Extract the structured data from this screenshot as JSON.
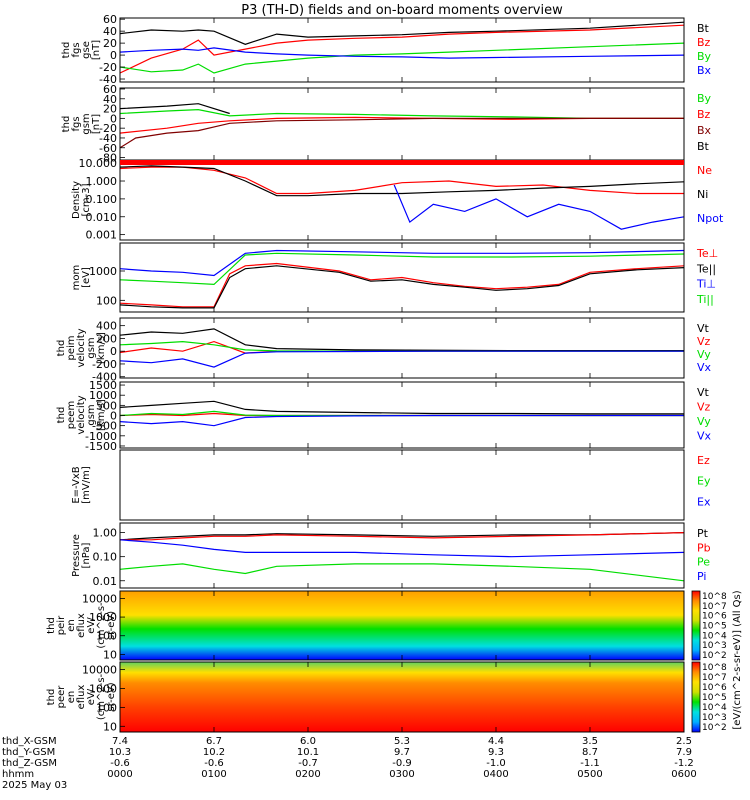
{
  "title": "P3 (TH-D) fields and on-board moments overview",
  "colors": {
    "black": "#000000",
    "red": "#ff0000",
    "green": "#00dd00",
    "blue": "#0000ff",
    "darkred": "#800000"
  },
  "chart_data": [
    {
      "type": "line",
      "ylabel": [
        "thd",
        "fgs",
        "gse",
        "[nT]"
      ],
      "yticks": [
        "60",
        "40",
        "20",
        "0",
        "-20",
        "-40"
      ],
      "ylim": [
        -45,
        62
      ],
      "series": [
        {
          "name": "Bt",
          "color": "#000000",
          "x": [
            0,
            20,
            40,
            50,
            60,
            80,
            100,
            120,
            150,
            180,
            210,
            240,
            300,
            360
          ],
          "y": [
            36,
            42,
            40,
            42,
            40,
            18,
            35,
            30,
            32,
            34,
            38,
            40,
            45,
            55
          ]
        },
        {
          "name": "Bz",
          "color": "#ff0000",
          "x": [
            0,
            20,
            40,
            50,
            60,
            80,
            100,
            120,
            150,
            180,
            210,
            240,
            300,
            360
          ],
          "y": [
            -30,
            -5,
            10,
            25,
            0,
            10,
            20,
            25,
            28,
            30,
            35,
            38,
            42,
            50
          ]
        },
        {
          "name": "By",
          "color": "#00dd00",
          "x": [
            0,
            20,
            40,
            50,
            60,
            80,
            100,
            120,
            150,
            180,
            210,
            240,
            300,
            360
          ],
          "y": [
            -20,
            -28,
            -25,
            -15,
            -30,
            -15,
            -10,
            -5,
            0,
            2,
            5,
            8,
            14,
            20
          ]
        },
        {
          "name": "Bx",
          "color": "#0000ff",
          "x": [
            0,
            20,
            40,
            50,
            60,
            80,
            100,
            120,
            150,
            180,
            210,
            240,
            300,
            360
          ],
          "y": [
            5,
            8,
            10,
            8,
            12,
            5,
            2,
            0,
            -2,
            -3,
            -5,
            -4,
            -2,
            0
          ]
        }
      ]
    },
    {
      "type": "line",
      "ylabel": [
        "thd",
        "fgs",
        "gsm",
        "[nT]"
      ],
      "yticks": [
        "60",
        "40",
        "20",
        "0",
        "-20",
        "-40",
        "-60",
        "-80"
      ],
      "ylim": [
        -85,
        62
      ],
      "series": [
        {
          "name": "By",
          "color": "#00dd00",
          "x": [
            0,
            30,
            50,
            70,
            100,
            150,
            200,
            250,
            300,
            360
          ],
          "y": [
            10,
            15,
            18,
            5,
            10,
            8,
            5,
            3,
            0,
            0
          ]
        },
        {
          "name": "Bz",
          "color": "#ff0000",
          "x": [
            0,
            30,
            50,
            70,
            100,
            150,
            200,
            250,
            300,
            360
          ],
          "y": [
            -30,
            -20,
            -10,
            -5,
            0,
            2,
            0,
            -2,
            0,
            0
          ]
        },
        {
          "name": "Bx",
          "color": "#800000",
          "x": [
            0,
            10,
            30,
            50,
            70,
            100,
            150,
            200,
            250,
            300,
            360
          ],
          "y": [
            -60,
            -40,
            -30,
            -25,
            -10,
            -5,
            -3,
            0,
            0,
            0,
            0
          ]
        },
        {
          "name": "Bt",
          "color": "#000000",
          "x": [
            0,
            30,
            50,
            70
          ],
          "y": [
            20,
            25,
            30,
            10
          ]
        }
      ]
    },
    {
      "type": "line",
      "ylabel": [
        "Density",
        "[cm-3]"
      ],
      "yticks": [
        "10.000",
        "1.000",
        "0.100",
        "0.010",
        "0.001"
      ],
      "scale": "log",
      "ylim": [
        0.0005,
        15
      ],
      "series": [
        {
          "name": "Ne",
          "color": "#ff0000",
          "x": [
            0,
            20,
            40,
            60,
            80,
            100,
            120,
            150,
            180,
            210,
            240,
            270,
            300,
            330,
            360
          ],
          "y": [
            5,
            6,
            6,
            4,
            1.5,
            0.2,
            0.2,
            0.3,
            0.8,
            1.0,
            0.5,
            0.6,
            0.3,
            0.2,
            0.2
          ]
        },
        {
          "name": "Ni",
          "color": "#000000",
          "x": [
            0,
            20,
            40,
            60,
            80,
            100,
            120,
            150,
            180,
            210,
            240,
            270,
            300,
            330,
            360
          ],
          "y": [
            6,
            7,
            6,
            5,
            1.0,
            0.15,
            0.15,
            0.2,
            0.2,
            0.25,
            0.3,
            0.4,
            0.5,
            0.7,
            0.9
          ]
        },
        {
          "name": "Npot",
          "color": "#0000ff",
          "x": [
            0,
            100,
            150,
            175,
            185,
            200,
            220,
            240,
            260,
            280,
            300,
            320,
            340,
            360
          ],
          "y": [
            null,
            null,
            null,
            0.6,
            0.005,
            0.05,
            0.02,
            0.1,
            0.01,
            0.05,
            0.02,
            0.002,
            0.005,
            0.01
          ]
        }
      ]
    },
    {
      "type": "line",
      "ylabel": [
        "mom",
        "[eV]"
      ],
      "yticks": [
        "1000",
        "100"
      ],
      "scale": "log",
      "ylim": [
        40,
        9000
      ],
      "series": [
        {
          "name": "Te⊥",
          "color": "#ff0000",
          "x": [
            0,
            20,
            40,
            60,
            70,
            80,
            100,
            140,
            160,
            180,
            200,
            220,
            240,
            260,
            280,
            300,
            330,
            360
          ],
          "y": [
            80,
            70,
            60,
            60,
            800,
            1500,
            1800,
            1000,
            500,
            600,
            400,
            300,
            250,
            280,
            350,
            900,
            1200,
            1500
          ]
        },
        {
          "name": "Te||",
          "color": "#000000",
          "x": [
            0,
            20,
            40,
            60,
            70,
            80,
            100,
            140,
            160,
            180,
            200,
            220,
            240,
            260,
            280,
            300,
            330,
            360
          ],
          "y": [
            70,
            60,
            55,
            55,
            600,
            1200,
            1500,
            900,
            450,
            500,
            350,
            280,
            220,
            250,
            320,
            800,
            1100,
            1300
          ]
        },
        {
          "name": "Ti⊥",
          "color": "#0000ff",
          "x": [
            0,
            20,
            40,
            60,
            80,
            100,
            150,
            200,
            250,
            300,
            360
          ],
          "y": [
            1200,
            1000,
            900,
            700,
            4000,
            5000,
            4500,
            4000,
            4000,
            4200,
            5000
          ]
        },
        {
          "name": "Ti||",
          "color": "#00dd00",
          "x": [
            0,
            20,
            40,
            60,
            80,
            100,
            150,
            200,
            250,
            300,
            360
          ],
          "y": [
            500,
            450,
            400,
            350,
            3500,
            4000,
            3500,
            3000,
            3000,
            3200,
            3800
          ]
        }
      ]
    },
    {
      "type": "line",
      "ylabel": [
        "thd",
        "peim",
        "velocity",
        "gsm",
        "[km/s]"
      ],
      "yticks": [
        "400",
        "200",
        "0",
        "-200",
        "-400"
      ],
      "ylim": [
        -420,
        520
      ],
      "series": [
        {
          "name": "Vt",
          "color": "#000000",
          "x": [
            0,
            20,
            40,
            60,
            80,
            100,
            150,
            200,
            250,
            300,
            360
          ],
          "y": [
            250,
            300,
            280,
            350,
            100,
            40,
            20,
            15,
            10,
            10,
            10
          ]
        },
        {
          "name": "Vz",
          "color": "#ff0000",
          "x": [
            0,
            20,
            40,
            60,
            80,
            100,
            150,
            200,
            250,
            300,
            360
          ],
          "y": [
            -20,
            50,
            0,
            150,
            -30,
            0,
            0,
            0,
            0,
            0,
            0
          ]
        },
        {
          "name": "Vy",
          "color": "#00dd00",
          "x": [
            0,
            20,
            40,
            60,
            80,
            100,
            150,
            200,
            250,
            300,
            360
          ],
          "y": [
            100,
            120,
            150,
            100,
            20,
            5,
            0,
            0,
            0,
            0,
            0
          ]
        },
        {
          "name": "Vx",
          "color": "#0000ff",
          "x": [
            0,
            20,
            40,
            60,
            80,
            100,
            150,
            200,
            250,
            300,
            360
          ],
          "y": [
            -150,
            -180,
            -120,
            -250,
            -30,
            -10,
            -5,
            0,
            0,
            0,
            0
          ]
        }
      ]
    },
    {
      "type": "line",
      "ylabel": [
        "thd",
        "peem",
        "velocity",
        "gsm",
        "[km/s]"
      ],
      "yticks": [
        "1500",
        "1000",
        "500",
        "0",
        "-500",
        "-1000",
        "-1500"
      ],
      "ylim": [
        -1600,
        1650
      ],
      "series": [
        {
          "name": "Vt",
          "color": "#000000",
          "x": [
            0,
            20,
            40,
            60,
            80,
            100,
            150,
            200,
            250,
            300,
            360
          ],
          "y": [
            400,
            500,
            600,
            700,
            300,
            200,
            150,
            100,
            100,
            80,
            80
          ]
        },
        {
          "name": "Vz",
          "color": "#ff0000",
          "x": [
            0,
            20,
            40,
            60,
            80,
            100,
            150,
            200,
            250,
            300,
            360
          ],
          "y": [
            0,
            50,
            0,
            100,
            0,
            0,
            0,
            0,
            0,
            0,
            0
          ]
        },
        {
          "name": "Vy",
          "color": "#00dd00",
          "x": [
            0,
            20,
            40,
            60,
            80,
            100,
            150,
            200,
            250,
            300,
            360
          ],
          "y": [
            0,
            100,
            50,
            200,
            20,
            0,
            0,
            0,
            0,
            0,
            0
          ]
        },
        {
          "name": "Vx",
          "color": "#0000ff",
          "x": [
            0,
            20,
            40,
            60,
            80,
            100,
            150,
            200,
            250,
            300,
            360
          ],
          "y": [
            -300,
            -400,
            -300,
            -500,
            -100,
            -50,
            -20,
            0,
            0,
            0,
            0
          ]
        }
      ]
    },
    {
      "type": "line",
      "ylabel": [
        "E=-VxB",
        "[mV/m]"
      ],
      "yticks": [],
      "ylim": [
        0,
        1
      ],
      "series": [
        {
          "name": "Ez",
          "color": "#ff0000",
          "x": [],
          "y": []
        },
        {
          "name": "Ey",
          "color": "#00dd00",
          "x": [],
          "y": []
        },
        {
          "name": "Ex",
          "color": "#0000ff",
          "x": [],
          "y": []
        }
      ]
    },
    {
      "type": "line",
      "ylabel": [
        "Pressure",
        "[nPa]"
      ],
      "yticks": [
        "1.00",
        "0.10",
        "0.01"
      ],
      "scale": "log",
      "ylim": [
        0.005,
        2.5
      ],
      "series": [
        {
          "name": "Pt",
          "color": "#000000",
          "x": [
            0,
            20,
            40,
            60,
            80,
            100,
            150,
            200,
            250,
            300,
            360
          ],
          "y": [
            0.5,
            0.6,
            0.7,
            0.8,
            0.8,
            0.9,
            0.8,
            0.7,
            0.8,
            0.8,
            1.0
          ]
        },
        {
          "name": "Pb",
          "color": "#ff0000",
          "x": [
            0,
            20,
            40,
            60,
            80,
            100,
            150,
            200,
            250,
            300,
            360
          ],
          "y": [
            0.5,
            0.5,
            0.6,
            0.7,
            0.7,
            0.8,
            0.7,
            0.6,
            0.7,
            0.8,
            1.0
          ]
        },
        {
          "name": "Pe",
          "color": "#00dd00",
          "x": [
            0,
            20,
            40,
            60,
            80,
            100,
            150,
            200,
            250,
            300,
            360
          ],
          "y": [
            0.03,
            0.04,
            0.05,
            0.03,
            0.02,
            0.04,
            0.05,
            0.05,
            0.04,
            0.03,
            0.01
          ]
        },
        {
          "name": "Pi",
          "color": "#0000ff",
          "x": [
            0,
            20,
            40,
            60,
            80,
            100,
            150,
            200,
            250,
            300,
            360
          ],
          "y": [
            0.5,
            0.4,
            0.3,
            0.2,
            0.15,
            0.15,
            0.15,
            0.12,
            0.1,
            0.12,
            0.15
          ]
        }
      ]
    },
    {
      "type": "heatmap",
      "ylabel": [
        "thd",
        "peir",
        "en",
        "eflux",
        "eV/",
        "(cm^2-s-",
        "sr-eV)"
      ],
      "yticks": [
        "10000",
        "1000",
        "100",
        "10"
      ],
      "scale": "log",
      "ylim": [
        5,
        25000
      ],
      "colorbar_ticks": [
        "10^8",
        "10^7",
        "10^6",
        "10^5",
        "10^4",
        "10^3",
        "10^2"
      ],
      "colorbar_label": "[eV/(cm^2-s-sr-eV)] (All Qs)"
    },
    {
      "type": "heatmap",
      "ylabel": [
        "thd",
        "peer",
        "en",
        "eflux",
        "eV/",
        "(cm^2-s-",
        "sr-eV)"
      ],
      "yticks": [
        "10000",
        "1000",
        "100",
        "10"
      ],
      "scale": "log",
      "ylim": [
        5,
        25000
      ],
      "colorbar_ticks": [
        "10^8",
        "10^7",
        "10^6",
        "10^5",
        "10^4",
        "10^3",
        "10^2"
      ]
    }
  ],
  "x_axis": {
    "tick_minutes": [
      0,
      60,
      120,
      180,
      240,
      300,
      360
    ],
    "rows": [
      {
        "label": "thd_X-GSM",
        "values": [
          "7.4",
          "6.7",
          "6.0",
          "5.3",
          "4.4",
          "3.5",
          "2.5"
        ]
      },
      {
        "label": "thd_Y-GSM",
        "values": [
          "10.3",
          "10.2",
          "10.1",
          "9.7",
          "9.3",
          "8.7",
          "7.9"
        ]
      },
      {
        "label": "thd_Z-GSM",
        "values": [
          "-0.6",
          "-0.6",
          "-0.7",
          "-0.9",
          "-1.0",
          "-1.1",
          "-1.2"
        ]
      },
      {
        "label": "hhmm",
        "values": [
          "0000",
          "0100",
          "0200",
          "0300",
          "0400",
          "0500",
          "0600"
        ]
      }
    ],
    "date": "2025 May 03"
  }
}
